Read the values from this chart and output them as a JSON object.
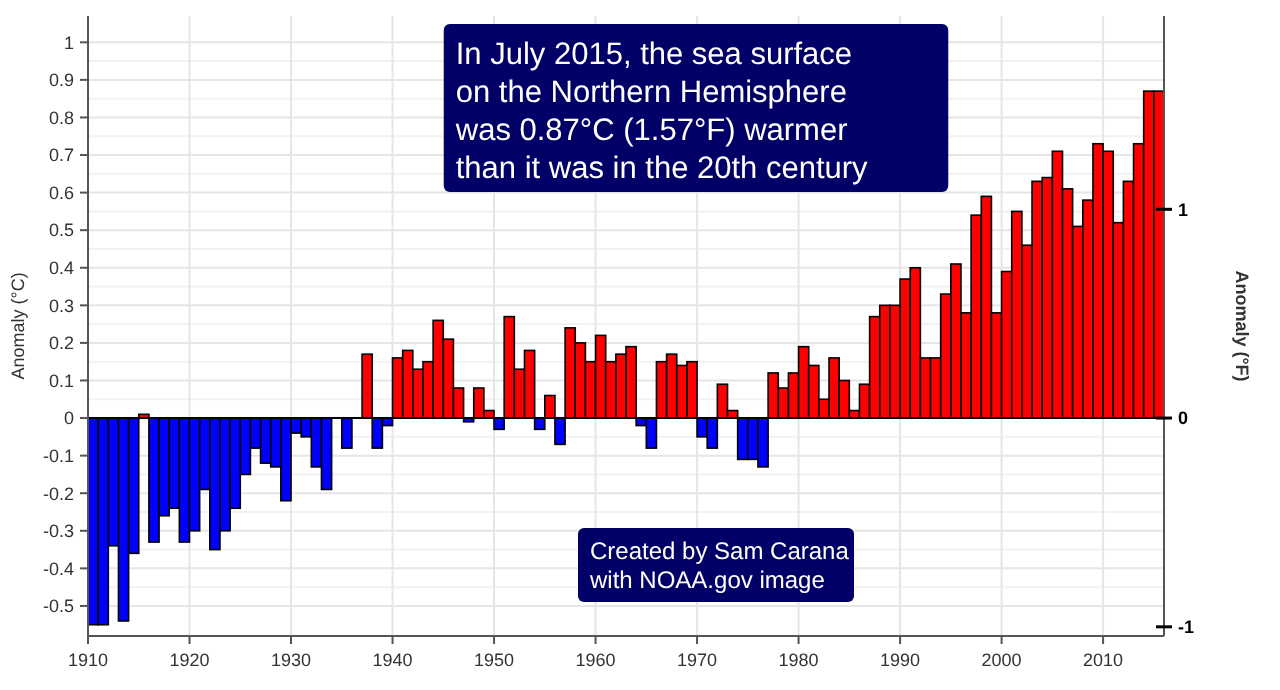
{
  "chart_data": {
    "type": "bar",
    "x": [
      1910,
      1911,
      1912,
      1913,
      1914,
      1915,
      1916,
      1917,
      1918,
      1919,
      1920,
      1921,
      1922,
      1923,
      1924,
      1925,
      1926,
      1927,
      1928,
      1929,
      1930,
      1931,
      1932,
      1933,
      1934,
      1935,
      1936,
      1937,
      1938,
      1939,
      1940,
      1941,
      1942,
      1943,
      1944,
      1945,
      1946,
      1947,
      1948,
      1949,
      1950,
      1951,
      1952,
      1953,
      1954,
      1955,
      1956,
      1957,
      1958,
      1959,
      1960,
      1961,
      1962,
      1963,
      1964,
      1965,
      1966,
      1967,
      1968,
      1969,
      1970,
      1971,
      1972,
      1973,
      1974,
      1975,
      1976,
      1977,
      1978,
      1979,
      1980,
      1981,
      1982,
      1983,
      1984,
      1985,
      1986,
      1987,
      1988,
      1989,
      1990,
      1991,
      1992,
      1993,
      1994,
      1995,
      1996,
      1997,
      1998,
      1999,
      2000,
      2001,
      2002,
      2003,
      2004,
      2005,
      2006,
      2007,
      2008,
      2009,
      2010,
      2011,
      2012,
      2013,
      2014,
      2015
    ],
    "values": [
      -0.55,
      -0.55,
      -0.34,
      -0.54,
      -0.36,
      0.01,
      -0.33,
      -0.26,
      -0.24,
      -0.33,
      -0.3,
      -0.19,
      -0.35,
      -0.3,
      -0.24,
      -0.15,
      -0.08,
      -0.12,
      -0.13,
      -0.22,
      -0.04,
      -0.05,
      -0.13,
      -0.19,
      0,
      -0.08,
      0,
      0.17,
      -0.08,
      -0.02,
      0.16,
      0.18,
      0.13,
      0.15,
      0.26,
      0.21,
      0.08,
      -0.01,
      0.08,
      0.02,
      -0.03,
      0.27,
      0.13,
      0.18,
      -0.03,
      0.06,
      -0.07,
      0.24,
      0.2,
      0.15,
      0.22,
      0.15,
      0.17,
      0.19,
      -0.02,
      -0.08,
      0.15,
      0.17,
      0.14,
      0.15,
      -0.05,
      -0.08,
      0.09,
      0.02,
      -0.11,
      -0.11,
      -0.13,
      0.12,
      0.08,
      0.12,
      0.19,
      0.14,
      0.05,
      0.16,
      0.1,
      0.02,
      0.09,
      0.27,
      0.3,
      0.3,
      0.37,
      0.4,
      0.16,
      0.16,
      0.33,
      0.41,
      0.28,
      0.54,
      0.59,
      0.28,
      0.39,
      0.55,
      0.46,
      0.63,
      0.64,
      0.71,
      0.61,
      0.51,
      0.58,
      0.73,
      0.71,
      0.52,
      0.63,
      0.73,
      0.87,
      0.87
    ],
    "colors": [
      "#0000ff",
      "#0000ff",
      "#0000ff",
      "#0000ff",
      "#0000ff",
      "#ff0000",
      "#0000ff",
      "#0000ff",
      "#0000ff",
      "#0000ff",
      "#0000ff",
      "#0000ff",
      "#0000ff",
      "#0000ff",
      "#0000ff",
      "#0000ff",
      "#0000ff",
      "#0000ff",
      "#0000ff",
      "#0000ff",
      "#0000ff",
      "#0000ff",
      "#0000ff",
      "#0000ff",
      "#0000ff",
      "#0000ff",
      "#ff0000",
      "#ff0000",
      "#0000ff",
      "#0000ff",
      "#ff0000",
      "#ff0000",
      "#ff0000",
      "#ff0000",
      "#ff0000",
      "#ff0000",
      "#ff0000",
      "#0000ff",
      "#ff0000",
      "#ff0000",
      "#0000ff",
      "#ff0000",
      "#ff0000",
      "#ff0000",
      "#0000ff",
      "#ff0000",
      "#0000ff",
      "#ff0000",
      "#ff0000",
      "#ff0000",
      "#ff0000",
      "#ff0000",
      "#ff0000",
      "#ff0000",
      "#0000ff",
      "#0000ff",
      "#ff0000",
      "#ff0000",
      "#ff0000",
      "#ff0000",
      "#0000ff",
      "#0000ff",
      "#ff0000",
      "#ff0000",
      "#0000ff",
      "#0000ff",
      "#0000ff",
      "#ff0000",
      "#ff0000",
      "#ff0000",
      "#ff0000",
      "#ff0000",
      "#ff0000",
      "#ff0000",
      "#ff0000",
      "#ff0000",
      "#ff0000",
      "#ff0000",
      "#ff0000",
      "#ff0000",
      "#ff0000",
      "#ff0000",
      "#ff0000",
      "#ff0000",
      "#ff0000",
      "#ff0000",
      "#ff0000",
      "#ff0000",
      "#ff0000",
      "#ff0000",
      "#ff0000",
      "#ff0000",
      "#ff0000",
      "#ff0000",
      "#ff0000",
      "#ff0000",
      "#ff0000",
      "#ff0000",
      "#ff0000",
      "#ff0000",
      "#ff0000",
      "#ff0000",
      "#ff0000",
      "#ff0000",
      "#ff0000",
      "#ff0000"
    ],
    "xlim": [
      1910,
      2016
    ],
    "xticks": [
      1910,
      1920,
      1930,
      1940,
      1950,
      1960,
      1970,
      1980,
      1990,
      2000,
      2010
    ],
    "ylim": [
      -0.58,
      1.07
    ],
    "yticks": [
      -0.5,
      -0.4,
      -0.3,
      -0.2,
      -0.1,
      0,
      0.1,
      0.2,
      0.3,
      0.4,
      0.5,
      0.6,
      0.7,
      0.8,
      0.9,
      1
    ],
    "y2lim": [
      -1.044,
      1.926
    ],
    "y2ticks": [
      -1,
      0,
      1
    ],
    "ylabel": "Anomaly (°C)",
    "y2label": "Anomaly (°F)",
    "grid": true,
    "annotations": [
      "In July 2015, the sea surface\non the Northern Hemisphere\nwas 0.87°C (1.57°F) warmer\nthan it was in the 20th century",
      "Created by Sam Carana\nwith NOAA.gov image"
    ]
  }
}
